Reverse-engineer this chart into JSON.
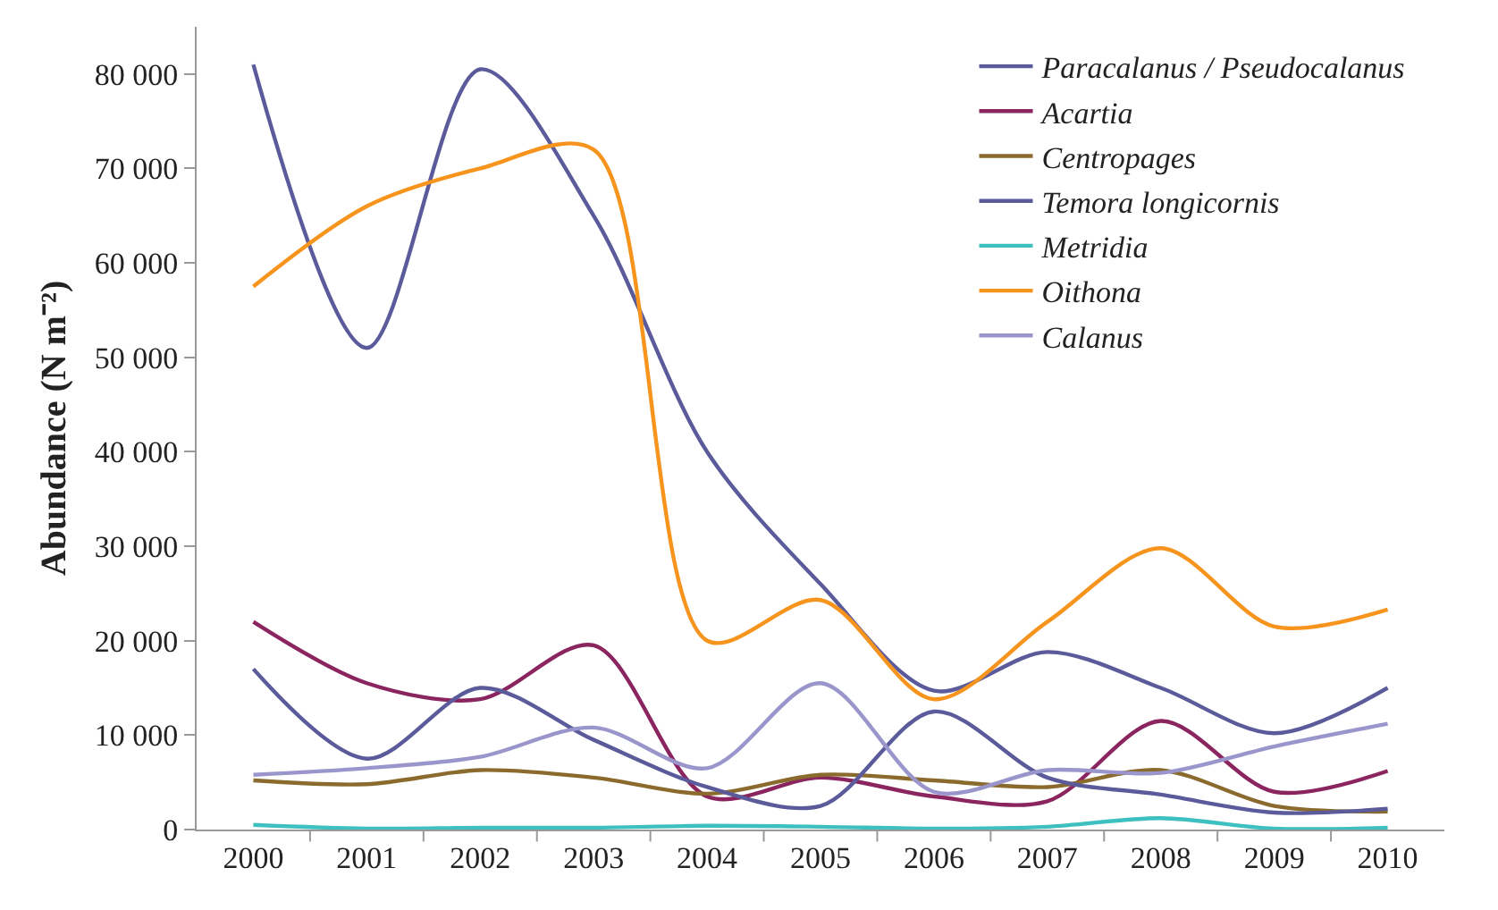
{
  "chart_data": {
    "type": "line",
    "ylabel": "Abundance (N m⁻²)",
    "categories": [
      "2000",
      "2001",
      "2002",
      "2003",
      "2004",
      "2005",
      "2006",
      "2007",
      "2008",
      "2009",
      "2010"
    ],
    "series": [
      {
        "name": "Paracalanus / Pseudocalanus",
        "color": "#5b5b9b",
        "values": [
          81000,
          51000,
          80500,
          65000,
          40000,
          26000,
          14700,
          18800,
          15000,
          10200,
          15000
        ]
      },
      {
        "name": "Acartia",
        "color": "#8b2560",
        "values": [
          22000,
          15500,
          13800,
          19500,
          3500,
          5500,
          3500,
          3000,
          11500,
          4000,
          6200
        ]
      },
      {
        "name": "Centropages",
        "color": "#8b6a2e",
        "values": [
          5200,
          4800,
          6300,
          5500,
          3800,
          5800,
          5200,
          4500,
          6300,
          2500,
          1900
        ]
      },
      {
        "name": "Temora longicornis",
        "color": "#5b5b9b",
        "values": [
          17000,
          7500,
          15000,
          9500,
          4500,
          2500,
          12500,
          5500,
          3700,
          1800,
          2200
        ]
      },
      {
        "name": "Metridia",
        "color": "#3ec0c0",
        "values": [
          500,
          100,
          200,
          200,
          400,
          300,
          100,
          300,
          1200,
          100,
          200
        ]
      },
      {
        "name": "Oithona",
        "color": "#f7941d",
        "values": [
          57500,
          66000,
          70000,
          72000,
          20000,
          24300,
          13800,
          22000,
          29800,
          21500,
          23300
        ]
      },
      {
        "name": "Calanus",
        "color": "#9a96cc",
        "values": [
          5800,
          6500,
          7700,
          10800,
          6500,
          15500,
          4000,
          6300,
          6000,
          8800,
          11200
        ]
      }
    ],
    "ylim": [
      0,
      85000
    ],
    "yticks": [
      {
        "value": 0,
        "label": "0"
      },
      {
        "value": 10000,
        "label": "10 000"
      },
      {
        "value": 20000,
        "label": "20 000"
      },
      {
        "value": 30000,
        "label": "30 000"
      },
      {
        "value": 40000,
        "label": "40 000"
      },
      {
        "value": 50000,
        "label": "50 000"
      },
      {
        "value": 60000,
        "label": "60 000"
      },
      {
        "value": 70000,
        "label": "70 000"
      },
      {
        "value": 80000,
        "label": "80 000"
      }
    ],
    "legend": "top right",
    "marker": "none",
    "line_style": "solid"
  }
}
